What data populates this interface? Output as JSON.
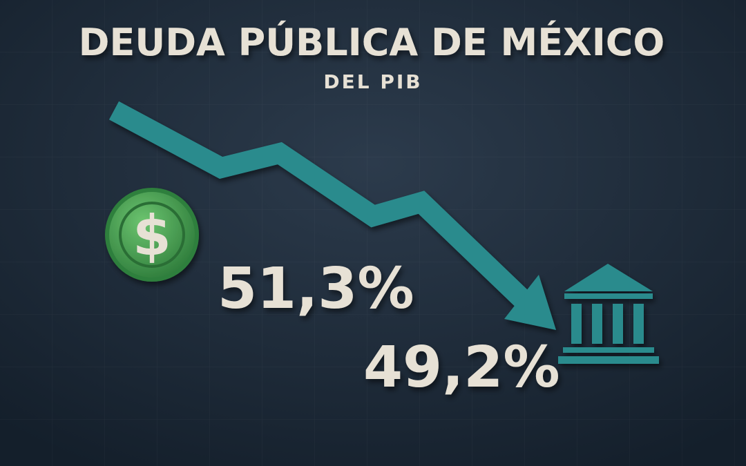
{
  "header": {
    "title": "DEUDA PÚBLICA DE MÉXICO",
    "subtitle": "DEL PIB"
  },
  "coin": {
    "symbol": "$"
  },
  "figures": [
    {
      "label": "51,3%"
    },
    {
      "label": "49,2%"
    }
  ]
}
